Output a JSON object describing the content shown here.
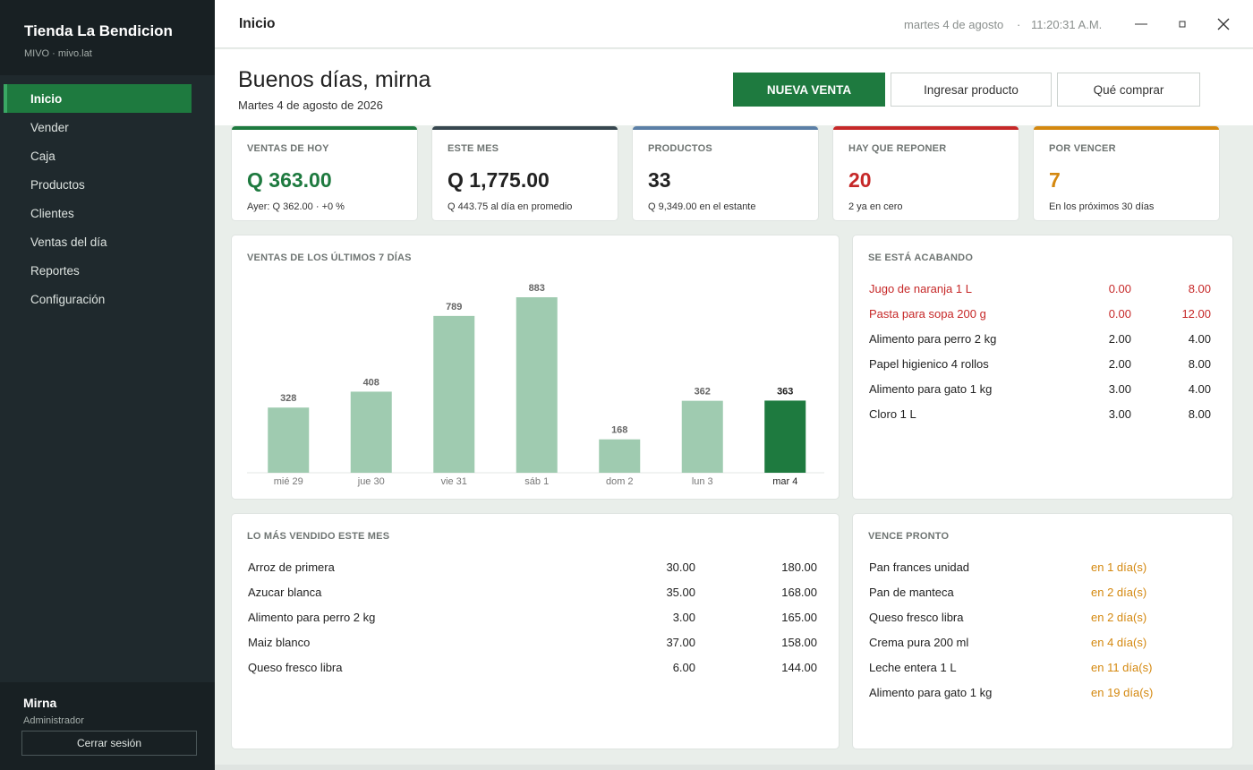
{
  "sidebar": {
    "brand": "Tienda La Bendicion",
    "brand_sub": "MIVO · mivo.lat",
    "items": [
      {
        "label": "Inicio",
        "active": true
      },
      {
        "label": "Vender"
      },
      {
        "label": "Caja"
      },
      {
        "label": "Productos"
      },
      {
        "label": "Clientes"
      },
      {
        "label": "Ventas del día"
      },
      {
        "label": "Reportes"
      },
      {
        "label": "Configuración"
      }
    ],
    "user_name": "Mirna",
    "user_role": "Administrador",
    "logout_label": "Cerrar sesión"
  },
  "topbar": {
    "title": "Inicio",
    "date": "martes 4 de agosto",
    "separator": "·",
    "time": "11:20:31 A.M.",
    "icons": [
      "minimize-icon",
      "maximize-icon",
      "close-icon"
    ]
  },
  "header": {
    "greeting": "Buenos días, mirna",
    "date": "Martes 4 de agosto de 2026",
    "primary_button": "NUEVA VENTA",
    "secondary_button_1": "Ingresar producto",
    "secondary_button_2": "Qué comprar"
  },
  "stats": [
    {
      "label": "VENTAS DE HOY",
      "value": "Q 363.00",
      "sub": "Ayer: Q 362.00   ·   +0 %",
      "accent": "#1e7a3f",
      "value_color": "#1e7a3f"
    },
    {
      "label": "ESTE MES",
      "value": "Q 1,775.00",
      "sub": "Q 443.75 al día en promedio",
      "accent": "#37474f",
      "value_color": "#222222"
    },
    {
      "label": "PRODUCTOS",
      "value": "33",
      "sub": "Q 9,349.00 en el estante",
      "accent": "#5b7fa6",
      "value_color": "#222222"
    },
    {
      "label": "HAY QUE REPONER",
      "value": "20",
      "sub": "2 ya en cero",
      "accent": "#c62828",
      "value_color": "#c62828"
    },
    {
      "label": "POR VENCER",
      "value": "7",
      "sub": "En los próximos 30 días",
      "accent": "#d4880f",
      "value_color": "#d4880f"
    }
  ],
  "chart_panel": {
    "title": "VENTAS DE LOS ÚLTIMOS 7 DÍAS"
  },
  "chart_data": {
    "type": "bar",
    "title": "VENTAS DE LOS ÚLTIMOS 7 DÍAS",
    "categories": [
      "mié 29",
      "jue 30",
      "vie 31",
      "sáb 1",
      "dom 2",
      "lun 3",
      "mar 4"
    ],
    "values": [
      328,
      408,
      789,
      883,
      168,
      362,
      363
    ],
    "highlight_index": 6,
    "bar_color": "#9fcbb0",
    "highlight_color": "#1e7a3f",
    "ylim": [
      0,
      883
    ]
  },
  "low_stock": {
    "title": "SE ESTÁ ACABANDO",
    "rows": [
      {
        "name": "Jugo de naranja 1 L",
        "qty": "0.00",
        "min": "8.00",
        "alert": true
      },
      {
        "name": "Pasta para sopa 200 g",
        "qty": "0.00",
        "min": "12.00",
        "alert": true
      },
      {
        "name": "Alimento para perro 2 kg",
        "qty": "2.00",
        "min": "4.00",
        "alert": false
      },
      {
        "name": "Papel higienico 4 rollos",
        "qty": "2.00",
        "min": "8.00",
        "alert": false
      },
      {
        "name": "Alimento para gato 1 kg",
        "qty": "3.00",
        "min": "4.00",
        "alert": false
      },
      {
        "name": "Cloro 1 L",
        "qty": "3.00",
        "min": "8.00",
        "alert": false
      }
    ]
  },
  "top_sold": {
    "title": "LO MÁS VENDIDO ESTE MES",
    "rows": [
      {
        "name": "Arroz de primera",
        "qty": "30.00",
        "total": "180.00"
      },
      {
        "name": "Azucar blanca",
        "qty": "35.00",
        "total": "168.00"
      },
      {
        "name": "Alimento para perro 2 kg",
        "qty": "3.00",
        "total": "165.00"
      },
      {
        "name": "Maiz blanco",
        "qty": "37.00",
        "total": "158.00"
      },
      {
        "name": "Queso fresco libra",
        "qty": "6.00",
        "total": "144.00"
      }
    ]
  },
  "expiring": {
    "title": "VENCE PRONTO",
    "rows": [
      {
        "name": "Pan frances unidad",
        "when": "en 1 día(s)"
      },
      {
        "name": "Pan de manteca",
        "when": "en 2 día(s)"
      },
      {
        "name": "Queso fresco libra",
        "when": "en 2 día(s)"
      },
      {
        "name": "Crema pura 200 ml",
        "when": "en 4 día(s)"
      },
      {
        "name": "Leche entera 1 L",
        "when": "en 11 día(s)"
      },
      {
        "name": "Alimento para gato 1 kg",
        "when": "en 19 día(s)"
      }
    ]
  }
}
